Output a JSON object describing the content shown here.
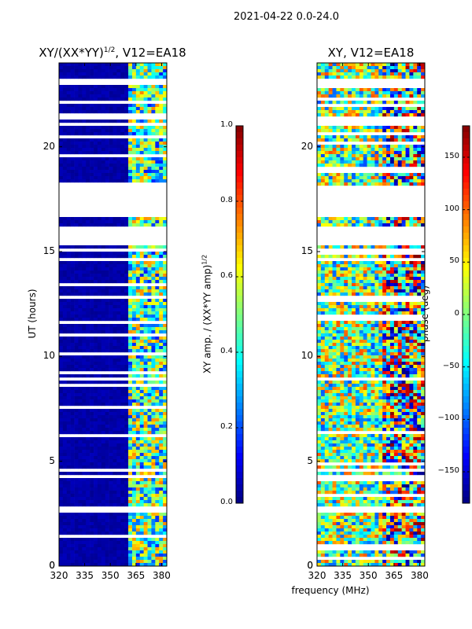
{
  "figure_title": "2021-04-22 0.0-24.0",
  "panels": {
    "left_title_main": "XY/(XX*YY)",
    "left_title_sup": "1/2",
    "left_title_suffix": ", V12=EA18",
    "right_title": "XY, V12=EA18"
  },
  "axes": {
    "ylabel": "UT (hours)",
    "xlabel": "frequency (MHz)",
    "cb_left_label_main": "XY amp. / (XX*YY amp)",
    "cb_left_label_sup": "1/2",
    "cb_right_label": "phase (deg)"
  },
  "chart_data": [
    {
      "type": "heatmap",
      "name": "normalized-amplitude",
      "title": "XY/(XX*YY)^1/2, V12=EA18",
      "xlabel": "frequency (MHz)",
      "ylabel": "UT (hours)",
      "xlim": [
        320,
        383
      ],
      "ylim": [
        0,
        24
      ],
      "xticks": [
        320,
        335,
        350,
        365,
        380
      ],
      "yticks": [
        0,
        5,
        10,
        15,
        20
      ],
      "colorbar": {
        "label": "XY amp. / (XX*YY amp)^1/2",
        "range": [
          0.0,
          1.0
        ],
        "ticks": [
          "0.0",
          "0.2",
          "0.4",
          "0.6",
          "0.8",
          "1.0"
        ]
      },
      "colormap": "jet",
      "flagged_time_ranges_hours": [
        [
          2.5,
          2.9
        ],
        [
          15.3,
          16.2
        ],
        [
          16.6,
          18.1
        ],
        [
          22.9,
          23.2
        ]
      ],
      "rfi_band_mhz": [
        361,
        382
      ]
    },
    {
      "type": "heatmap",
      "name": "phase",
      "title": "XY, V12=EA18",
      "xlabel": "frequency (MHz)",
      "ylabel": "",
      "xlim": [
        320,
        383
      ],
      "ylim": [
        0,
        24
      ],
      "xticks": [
        320,
        335,
        350,
        365,
        380
      ],
      "yticks": [
        0,
        5,
        10,
        15,
        20
      ],
      "colorbar": {
        "label": "phase (deg)",
        "range": [
          -180,
          180
        ],
        "ticks": [
          "-150",
          "-100",
          "-50",
          "0",
          "50",
          "100",
          "150"
        ]
      },
      "colormap": "jet",
      "flagged_time_ranges_hours": [
        [
          2.5,
          2.9
        ],
        [
          15.3,
          16.2
        ],
        [
          16.6,
          18.1
        ],
        [
          22.9,
          23.2
        ]
      ]
    }
  ],
  "colors": {
    "jet": [
      "#00007f",
      "#0000ff",
      "#007fff",
      "#00ffff",
      "#7fff7f",
      "#ffff00",
      "#ff7f00",
      "#ff0000",
      "#7f0000"
    ]
  }
}
